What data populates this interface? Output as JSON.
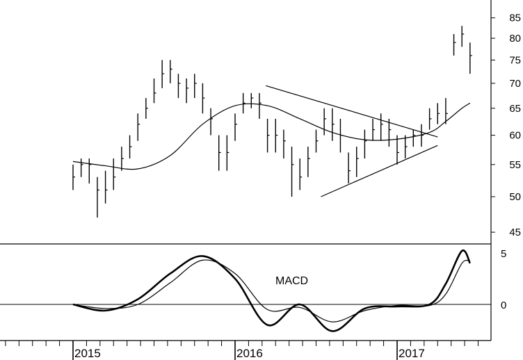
{
  "chart_data": [
    {
      "type": "line",
      "panel": "price",
      "scale": "log",
      "ylim": [
        44,
        86
      ],
      "y_ticks": [
        45,
        50,
        55,
        60,
        65,
        70,
        75,
        80,
        85
      ],
      "x_labels": [
        "2015",
        "2016",
        "2017"
      ],
      "grid": false,
      "series": [
        {
          "kind": "price-bars",
          "t": [
            0.0,
            0.05,
            0.1,
            0.15,
            0.2,
            0.25,
            0.3,
            0.35,
            0.4,
            0.45,
            0.5,
            0.55,
            0.6,
            0.65,
            0.7,
            0.75,
            0.8,
            0.85,
            0.9,
            0.95,
            1.0,
            1.05,
            1.1,
            1.15,
            1.2,
            1.25,
            1.3,
            1.35,
            1.4,
            1.45,
            1.5,
            1.55,
            1.6,
            1.65,
            1.7,
            1.75,
            1.8,
            1.85,
            1.9,
            1.95,
            2.0,
            2.05,
            2.1,
            2.15,
            2.2,
            2.25,
            2.3,
            2.35,
            2.4,
            2.45
          ],
          "close": [
            53,
            55,
            55,
            51,
            51,
            53,
            56,
            58,
            62,
            65,
            68,
            72,
            73,
            70,
            69,
            70,
            67,
            63,
            57,
            57,
            62,
            66,
            67,
            66,
            60,
            60,
            59,
            55,
            53,
            56,
            59,
            63,
            62,
            60,
            54,
            56,
            59,
            61,
            62,
            61,
            57,
            58,
            60,
            60,
            63,
            64,
            64,
            79,
            81,
            76
          ],
          "high": [
            55,
            56,
            56,
            53,
            54,
            56,
            58,
            60,
            64,
            67,
            71,
            75,
            75,
            72,
            71,
            72,
            70,
            65,
            60,
            60,
            64,
            68,
            68,
            68,
            63,
            63,
            61,
            58,
            56,
            58,
            61,
            65,
            65,
            63,
            57,
            58,
            61,
            63,
            64,
            63,
            60,
            60,
            61,
            62,
            65,
            66,
            67,
            81,
            83,
            79
          ],
          "low": [
            51,
            53,
            52,
            47,
            49,
            51,
            54,
            56,
            59,
            63,
            66,
            69,
            70,
            67,
            66,
            67,
            64,
            60,
            54,
            54,
            59,
            64,
            65,
            63,
            57,
            57,
            56,
            50,
            51,
            53,
            57,
            60,
            59,
            57,
            52,
            53,
            56,
            59,
            59,
            58,
            55,
            56,
            58,
            58,
            61,
            62,
            62,
            76,
            78,
            72
          ]
        },
        {
          "kind": "moving-average",
          "t": [
            0.0,
            0.2,
            0.4,
            0.6,
            0.8,
            1.0,
            1.2,
            1.4,
            1.6,
            1.8,
            2.0,
            2.2,
            2.3,
            2.4,
            2.45
          ],
          "values": [
            55.5,
            54.8,
            54.3,
            56.5,
            62.0,
            65.5,
            65.5,
            63.0,
            60.5,
            59.2,
            59.3,
            60.5,
            62.5,
            65.0,
            66.0
          ]
        }
      ],
      "annotations": [
        {
          "kind": "trendline",
          "from": {
            "t": 1.19,
            "v": 69.5
          },
          "to": {
            "t": 2.25,
            "v": 59.7
          }
        },
        {
          "kind": "trendline",
          "from": {
            "t": 1.53,
            "v": 50.0
          },
          "to": {
            "t": 2.25,
            "v": 58.2
          }
        }
      ]
    },
    {
      "type": "line",
      "panel": "macd",
      "title": "MACD",
      "y_ticks": [
        0,
        5
      ],
      "series": [
        {
          "kind": "macd",
          "t": [
            0.0,
            0.2,
            0.4,
            0.6,
            0.8,
            1.0,
            1.2,
            1.4,
            1.6,
            1.8,
            2.0,
            2.2,
            2.3,
            2.4,
            2.45
          ],
          "values": [
            0.0,
            -0.6,
            0.5,
            3.0,
            4.7,
            2.5,
            -2.0,
            0.0,
            -2.6,
            -0.4,
            -0.2,
            0.0,
            2.0,
            5.2,
            4.0
          ]
        },
        {
          "kind": "signal",
          "t": [
            0.0,
            0.2,
            0.4,
            0.6,
            0.8,
            1.0,
            1.2,
            1.4,
            1.6,
            1.8,
            2.0,
            2.2,
            2.3,
            2.4,
            2.45
          ],
          "values": [
            0.0,
            -0.4,
            0.0,
            2.1,
            4.3,
            3.0,
            -0.5,
            -0.3,
            -1.7,
            -0.6,
            -0.1,
            -0.1,
            1.0,
            4.0,
            4.2
          ]
        }
      ]
    }
  ]
}
